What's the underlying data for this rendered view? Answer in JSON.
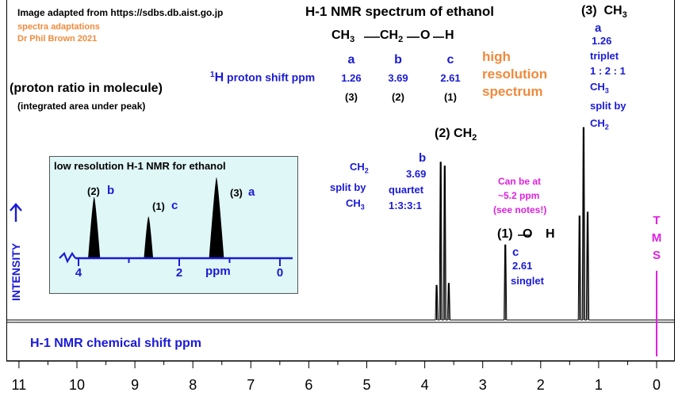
{
  "header": {
    "credit": "Image adapted from https://sdbs.db.aist.go.jp",
    "adaptations_1": "spectra adaptations",
    "adaptations_2": "Dr Phil Brown 2021",
    "title": "H-1 NMR spectrum of ethanol",
    "formula_ch3": "CH",
    "formula_ch3_sub": "3",
    "formula_ch2": "CH",
    "formula_ch2_sub": "2",
    "formula_o": "O",
    "formula_h": "H"
  },
  "shift_table": {
    "label_sup": "1",
    "label_h": "H",
    "label_text": "proton shift  ppm",
    "columns": [
      {
        "letter": "a",
        "shift": "1.26",
        "ratio": "(3)"
      },
      {
        "letter": "b",
        "shift": "3.69",
        "ratio": "(2)"
      },
      {
        "letter": "c",
        "shift": "2.61",
        "ratio": "(1)"
      }
    ],
    "high_res_1": "high",
    "high_res_2": "resolution",
    "high_res_3": "spectrum"
  },
  "ratio_note": {
    "line1": "(proton ratio in molecule)",
    "line2": "(integrated area under peak)"
  },
  "annotations": {
    "ch3_ratio": "(3)",
    "ch3_label": "CH",
    "ch3_sub": "3",
    "ch3_letter": "a",
    "ch3_shift": "1.26",
    "ch3_mult": "triplet",
    "ch3_pattern": "1 : 2 : 1",
    "ch3_name": "CH",
    "ch3_name_sub": "3",
    "ch3_split": "split by",
    "ch3_split_by": "CH",
    "ch3_split_by_sub": "2",
    "ch2_ratio": "(2)",
    "ch2_label": "CH",
    "ch2_sub": "2",
    "ch2_letter": "b",
    "ch2_shift": "3.69",
    "ch2_mult": "quartet",
    "ch2_pattern": "1:3:3:1",
    "ch2_name": "CH",
    "ch2_name_sub": "2",
    "ch2_split": "split by",
    "ch2_split_by": "CH",
    "ch2_split_by_sub": "3",
    "oh_ratio": "(1)",
    "oh_label": "O",
    "oh_h": "H",
    "oh_letter": "c",
    "oh_shift": "2.61",
    "oh_mult": "singlet",
    "oh_note_1": "Can be at",
    "oh_note_2": "~5.2 ppm",
    "oh_note_3": "(see notes!)",
    "tms": [
      "T",
      "M",
      "S"
    ],
    "intensity": "INTENSITY",
    "xaxis_label": "H-1 NMR chemical shift  ppm"
  },
  "inset": {
    "title": "low resolution H-1 NMR  for ethanol",
    "peak_b_ratio": "(2)",
    "peak_b_letter": "b",
    "peak_c_ratio": "(1)",
    "peak_c_letter": "c",
    "peak_a_ratio": "(3)",
    "peak_a_letter": "a",
    "ticks": [
      "4",
      "2",
      "0"
    ],
    "axis_label": "ppm"
  },
  "colors": {
    "blue": "#1a1ad6",
    "orange": "#f08a3c",
    "magenta": "#e020e0",
    "inset_bg": "#e0f7f7"
  },
  "chart_data": {
    "type": "line",
    "xlabel": "H-1 NMR chemical shift  ppm",
    "ylabel": "INTENSITY",
    "x_ticks": [
      "11",
      "10",
      "9",
      "8",
      "7",
      "6",
      "5",
      "4",
      "3",
      "2",
      "1",
      "0"
    ],
    "xlim": [
      11.1,
      -0.35
    ],
    "reversed_x": true,
    "peaks": [
      {
        "group": "CH3",
        "letter": "a",
        "center_ppm": 1.26,
        "multiplicity": "triplet",
        "pattern": [
          1,
          2,
          1
        ],
        "spacing_ppm": 0.07,
        "relative_height": [
          0.56,
          1.0,
          0.54
        ]
      },
      {
        "group": "CH2",
        "letter": "b",
        "center_ppm": 3.69,
        "multiplicity": "quartet",
        "pattern": [
          1,
          3,
          3,
          1
        ],
        "spacing_ppm": 0.07,
        "relative_height": [
          0.19,
          0.8,
          0.82,
          0.18
        ]
      },
      {
        "group": "OH",
        "letter": "c",
        "center_ppm": 2.61,
        "multiplicity": "singlet",
        "pattern": [
          1
        ],
        "spacing_ppm": 0,
        "relative_height": [
          0.39
        ]
      },
      {
        "group": "TMS",
        "center_ppm": 0.0,
        "multiplicity": "singlet",
        "pattern": [
          1
        ],
        "spacing_ppm": 0,
        "relative_height": [
          0.0
        ]
      }
    ],
    "inset_low_resolution": {
      "xlim": [
        4.2,
        -0.1
      ],
      "x_ticks": [
        4,
        2,
        0
      ],
      "peaks": [
        {
          "letter": "b",
          "ppm": 3.69,
          "ratio": 2
        },
        {
          "letter": "c",
          "ppm": 2.61,
          "ratio": 1
        },
        {
          "letter": "a",
          "ppm": 1.26,
          "ratio": 3
        }
      ]
    }
  }
}
